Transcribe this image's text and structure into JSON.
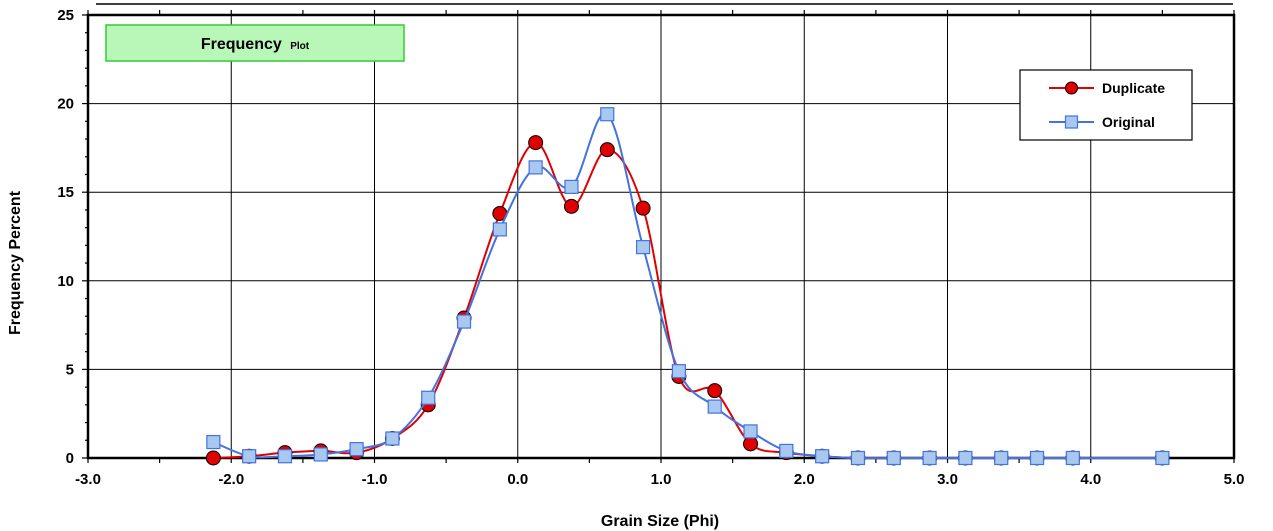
{
  "chart_data": {
    "type": "line",
    "title_main": "Frequency",
    "title_sub": "Plot",
    "xlabel": "Grain Size (Phi)",
    "ylabel": "Frequency Percent",
    "xlim": [
      -3.0,
      5.0
    ],
    "ylim": [
      0,
      25
    ],
    "x_ticks": [
      "-3.0",
      "-2.0",
      "-1.0",
      "0.0",
      "1.0",
      "2.0",
      "3.0",
      "4.0",
      "5.0"
    ],
    "y_ticks": [
      "0",
      "5",
      "10",
      "15",
      "20",
      "25"
    ],
    "grid": true,
    "legend_position": "top-right",
    "series": [
      {
        "name": "Duplicate",
        "color": "#e00000",
        "marker": "circle",
        "points": [
          [
            -2.125,
            0.0
          ],
          [
            -1.875,
            0.1
          ],
          [
            -1.625,
            0.3
          ],
          [
            -1.375,
            0.4
          ],
          [
            -1.125,
            0.3
          ],
          [
            -0.875,
            1.1
          ],
          [
            -0.625,
            3.0
          ],
          [
            -0.375,
            7.9
          ],
          [
            -0.125,
            13.8
          ],
          [
            0.125,
            17.8
          ],
          [
            0.375,
            14.2
          ],
          [
            0.625,
            17.4
          ],
          [
            0.875,
            14.1
          ],
          [
            1.125,
            4.6
          ],
          [
            1.375,
            3.8
          ],
          [
            1.625,
            0.8
          ],
          [
            1.875,
            0.3
          ],
          [
            2.125,
            0.1
          ],
          [
            2.375,
            0.0
          ],
          [
            2.625,
            0.0
          ],
          [
            2.875,
            0.0
          ],
          [
            3.125,
            0.0
          ],
          [
            3.375,
            0.0
          ],
          [
            3.625,
            0.0
          ],
          [
            3.875,
            0.0
          ],
          [
            4.5,
            0.0
          ]
        ]
      },
      {
        "name": "Original",
        "color": "#4472e0",
        "marker": "square",
        "points": [
          [
            -2.125,
            0.9
          ],
          [
            -1.875,
            0.1
          ],
          [
            -1.625,
            0.1
          ],
          [
            -1.375,
            0.2
          ],
          [
            -1.125,
            0.5
          ],
          [
            -0.875,
            1.1
          ],
          [
            -0.625,
            3.4
          ],
          [
            -0.375,
            7.7
          ],
          [
            -0.125,
            12.9
          ],
          [
            0.125,
            16.4
          ],
          [
            0.375,
            15.3
          ],
          [
            0.625,
            19.4
          ],
          [
            0.875,
            11.9
          ],
          [
            1.125,
            4.9
          ],
          [
            1.375,
            2.9
          ],
          [
            1.625,
            1.5
          ],
          [
            1.875,
            0.4
          ],
          [
            2.125,
            0.1
          ],
          [
            2.375,
            0.0
          ],
          [
            2.625,
            0.0
          ],
          [
            2.875,
            0.0
          ],
          [
            3.125,
            0.0
          ],
          [
            3.375,
            0.0
          ],
          [
            3.625,
            0.0
          ],
          [
            3.875,
            0.0
          ],
          [
            4.5,
            0.0
          ]
        ]
      }
    ]
  }
}
